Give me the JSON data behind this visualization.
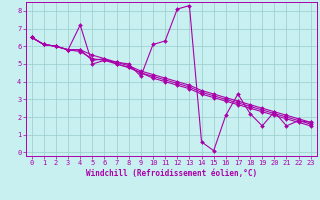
{
  "xlabel": "Windchill (Refroidissement éolien,°C)",
  "xlim": [
    -0.5,
    23.5
  ],
  "ylim": [
    -0.2,
    8.5
  ],
  "xticks": [
    0,
    1,
    2,
    3,
    4,
    5,
    6,
    7,
    8,
    9,
    10,
    11,
    12,
    13,
    14,
    15,
    16,
    17,
    18,
    19,
    20,
    21,
    22,
    23
  ],
  "yticks": [
    0,
    1,
    2,
    3,
    4,
    5,
    6,
    7,
    8
  ],
  "bg_color": "#c8f0f0",
  "line_color": "#aa00aa",
  "grid_color": "#99cccc",
  "series": [
    [
      6.5,
      6.1,
      6.0,
      5.8,
      7.2,
      5.0,
      5.2,
      5.1,
      5.0,
      4.3,
      6.1,
      6.3,
      8.1,
      8.3,
      0.6,
      0.1,
      2.1,
      3.3,
      2.2,
      1.5,
      2.3,
      1.5,
      1.8,
      1.7
    ],
    [
      6.5,
      6.1,
      6.0,
      5.8,
      5.8,
      5.5,
      5.3,
      5.1,
      4.9,
      4.6,
      4.4,
      4.2,
      4.0,
      3.8,
      3.5,
      3.3,
      3.1,
      2.9,
      2.7,
      2.5,
      2.3,
      2.1,
      1.9,
      1.7
    ],
    [
      6.5,
      6.1,
      6.0,
      5.8,
      5.8,
      5.2,
      5.3,
      5.0,
      4.8,
      4.5,
      4.3,
      4.1,
      3.9,
      3.7,
      3.4,
      3.2,
      3.0,
      2.8,
      2.6,
      2.4,
      2.2,
      2.0,
      1.8,
      1.6
    ],
    [
      6.5,
      6.1,
      6.0,
      5.8,
      5.7,
      5.3,
      5.2,
      5.0,
      4.8,
      4.5,
      4.2,
      4.0,
      3.8,
      3.6,
      3.3,
      3.1,
      2.9,
      2.7,
      2.5,
      2.3,
      2.1,
      1.9,
      1.7,
      1.5
    ]
  ],
  "tick_fontsize": 5.0,
  "xlabel_fontsize": 5.5,
  "marker_size": 2.0,
  "linewidth": 0.8
}
